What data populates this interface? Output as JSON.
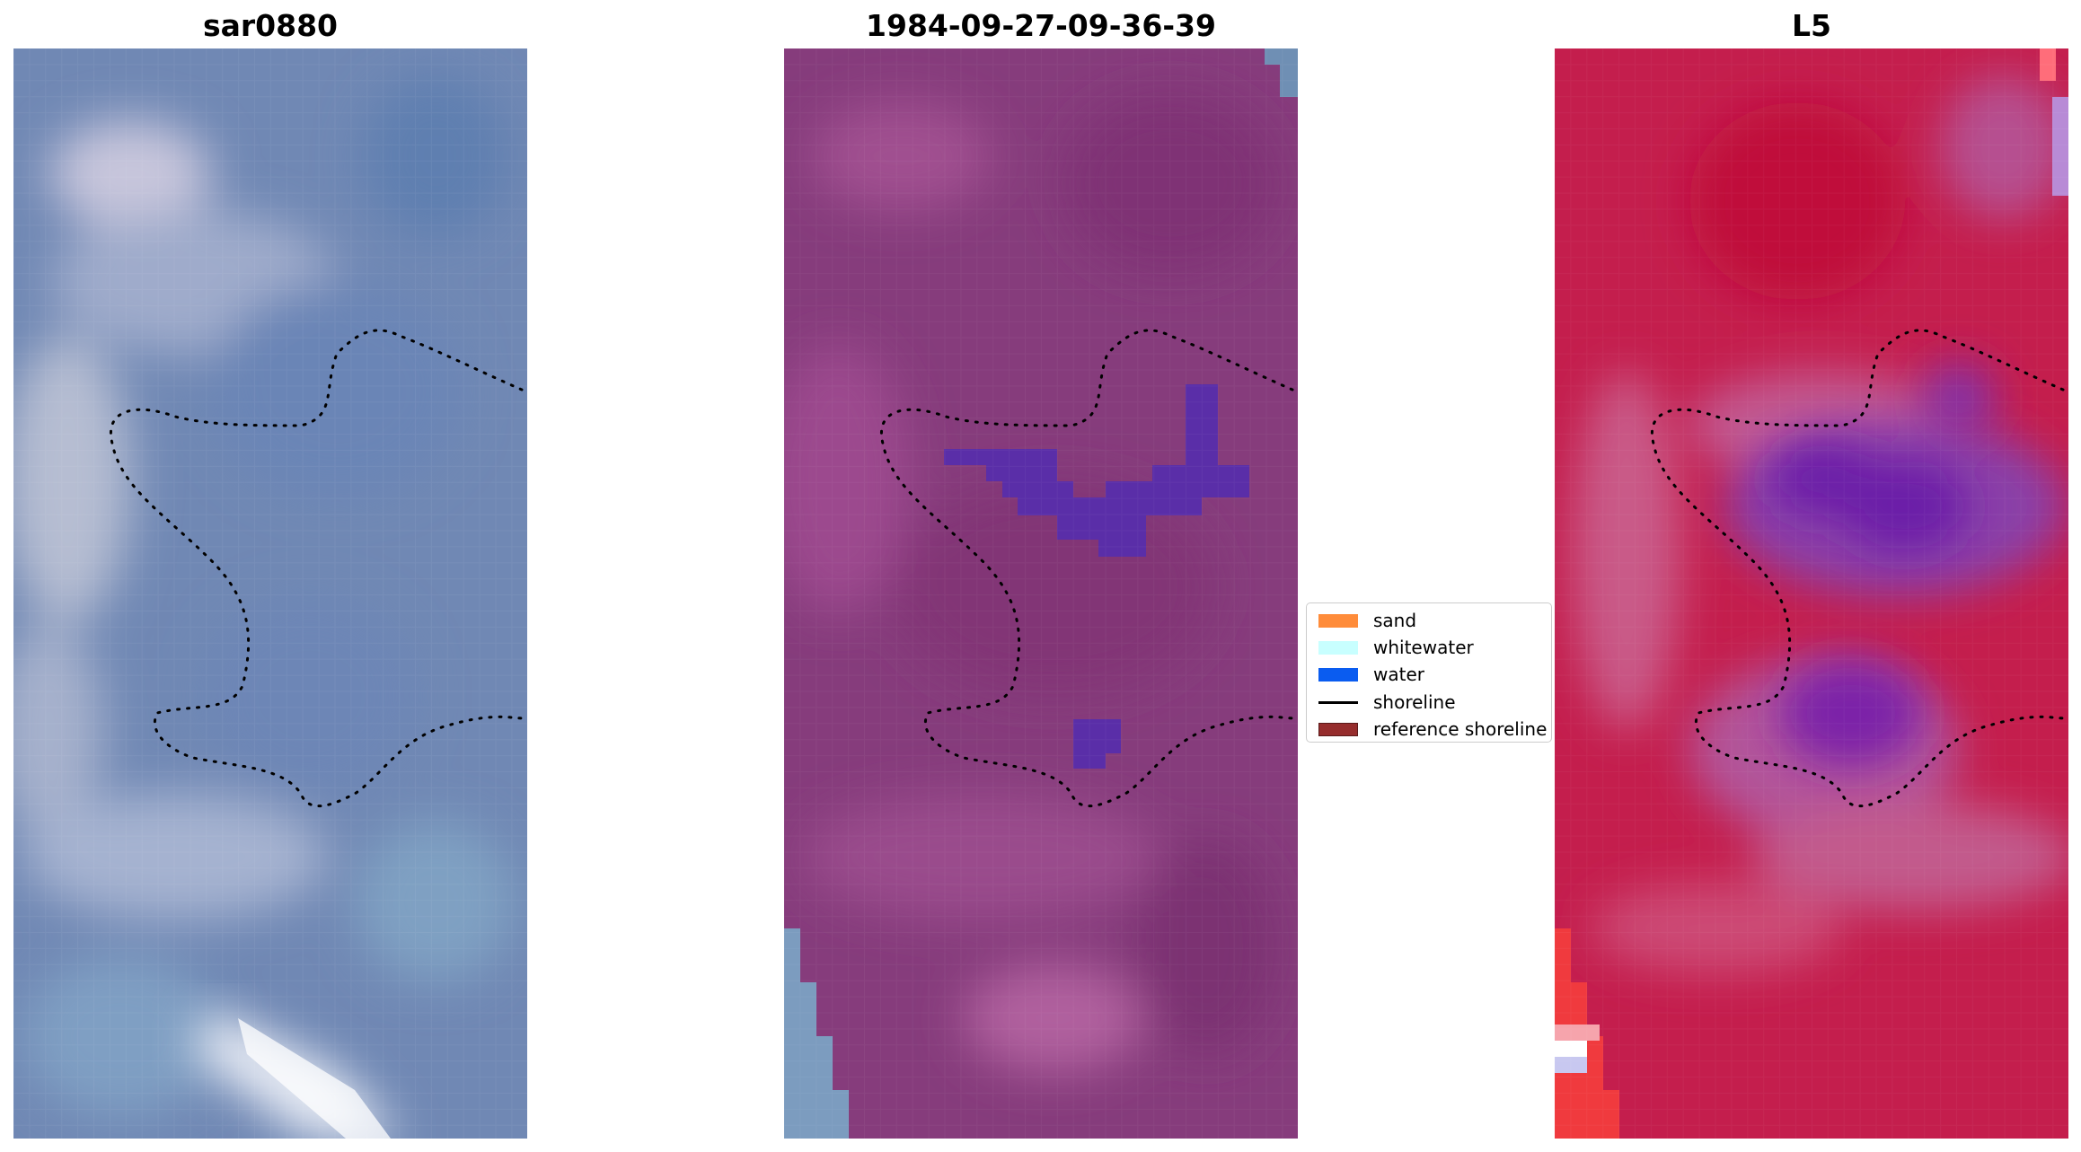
{
  "panels": {
    "left": {
      "title": "sar0880"
    },
    "middle": {
      "title": "1984-09-27-09-36-39"
    },
    "right": {
      "title": "L5"
    }
  },
  "legend": {
    "items": [
      {
        "label": "sand",
        "color": "#ff8c3a",
        "kind": "patch"
      },
      {
        "label": "whitewater",
        "color": "#c8ffff",
        "kind": "patch"
      },
      {
        "label": "water",
        "color": "#0a5cf0",
        "kind": "patch"
      },
      {
        "label": "shoreline",
        "color": "#000000",
        "kind": "line"
      },
      {
        "label": "reference shoreline",
        "color": "#962d2d",
        "kind": "patch"
      }
    ]
  },
  "colors": {
    "satellite_blue": "#6f88b3",
    "classified_purple": "#883f7e",
    "water_class": "#5a2ea8",
    "false_color_red": "#c61e4e",
    "shoreline_dots": "#000000"
  }
}
